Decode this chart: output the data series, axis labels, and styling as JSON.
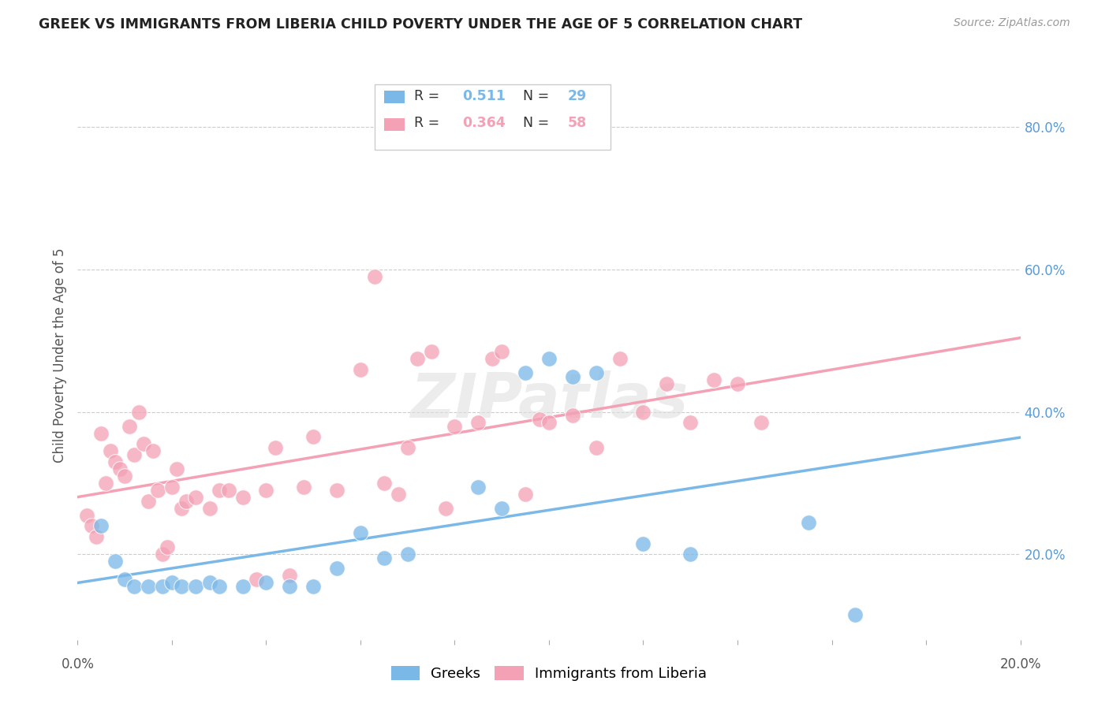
{
  "title": "GREEK VS IMMIGRANTS FROM LIBERIA CHILD POVERTY UNDER THE AGE OF 5 CORRELATION CHART",
  "source": "Source: ZipAtlas.com",
  "ylabel": "Child Poverty Under the Age of 5",
  "xlim": [
    0.0,
    0.2
  ],
  "ylim": [
    0.08,
    0.88
  ],
  "xticks_minor": [
    0.0,
    0.02,
    0.04,
    0.06,
    0.08,
    0.1,
    0.12,
    0.14,
    0.16,
    0.18,
    0.2
  ],
  "xticks_label": [
    0.0,
    0.2
  ],
  "yticks": [
    0.2,
    0.4,
    0.6,
    0.8
  ],
  "blue_color": "#7ab8e8",
  "pink_color": "#f4a0b5",
  "watermark": "ZIPatlas",
  "greek_points": [
    [
      0.005,
      0.24
    ],
    [
      0.008,
      0.19
    ],
    [
      0.01,
      0.165
    ],
    [
      0.012,
      0.155
    ],
    [
      0.015,
      0.155
    ],
    [
      0.018,
      0.155
    ],
    [
      0.02,
      0.16
    ],
    [
      0.022,
      0.155
    ],
    [
      0.025,
      0.155
    ],
    [
      0.028,
      0.16
    ],
    [
      0.03,
      0.155
    ],
    [
      0.035,
      0.155
    ],
    [
      0.04,
      0.16
    ],
    [
      0.045,
      0.155
    ],
    [
      0.05,
      0.155
    ],
    [
      0.055,
      0.18
    ],
    [
      0.06,
      0.23
    ],
    [
      0.065,
      0.195
    ],
    [
      0.07,
      0.2
    ],
    [
      0.085,
      0.295
    ],
    [
      0.09,
      0.265
    ],
    [
      0.095,
      0.455
    ],
    [
      0.1,
      0.475
    ],
    [
      0.105,
      0.45
    ],
    [
      0.11,
      0.455
    ],
    [
      0.12,
      0.215
    ],
    [
      0.13,
      0.2
    ],
    [
      0.155,
      0.245
    ],
    [
      0.165,
      0.115
    ]
  ],
  "liberia_points": [
    [
      0.002,
      0.255
    ],
    [
      0.003,
      0.24
    ],
    [
      0.004,
      0.225
    ],
    [
      0.005,
      0.37
    ],
    [
      0.006,
      0.3
    ],
    [
      0.007,
      0.345
    ],
    [
      0.008,
      0.33
    ],
    [
      0.009,
      0.32
    ],
    [
      0.01,
      0.31
    ],
    [
      0.011,
      0.38
    ],
    [
      0.012,
      0.34
    ],
    [
      0.013,
      0.4
    ],
    [
      0.014,
      0.355
    ],
    [
      0.015,
      0.275
    ],
    [
      0.016,
      0.345
    ],
    [
      0.017,
      0.29
    ],
    [
      0.018,
      0.2
    ],
    [
      0.019,
      0.21
    ],
    [
      0.02,
      0.295
    ],
    [
      0.021,
      0.32
    ],
    [
      0.022,
      0.265
    ],
    [
      0.023,
      0.275
    ],
    [
      0.025,
      0.28
    ],
    [
      0.028,
      0.265
    ],
    [
      0.03,
      0.29
    ],
    [
      0.032,
      0.29
    ],
    [
      0.035,
      0.28
    ],
    [
      0.038,
      0.165
    ],
    [
      0.04,
      0.29
    ],
    [
      0.042,
      0.35
    ],
    [
      0.045,
      0.17
    ],
    [
      0.048,
      0.295
    ],
    [
      0.05,
      0.365
    ],
    [
      0.055,
      0.29
    ],
    [
      0.06,
      0.46
    ],
    [
      0.063,
      0.59
    ],
    [
      0.065,
      0.3
    ],
    [
      0.068,
      0.285
    ],
    [
      0.07,
      0.35
    ],
    [
      0.072,
      0.475
    ],
    [
      0.075,
      0.485
    ],
    [
      0.078,
      0.265
    ],
    [
      0.08,
      0.38
    ],
    [
      0.085,
      0.385
    ],
    [
      0.088,
      0.475
    ],
    [
      0.09,
      0.485
    ],
    [
      0.095,
      0.285
    ],
    [
      0.098,
      0.39
    ],
    [
      0.1,
      0.385
    ],
    [
      0.105,
      0.395
    ],
    [
      0.11,
      0.35
    ],
    [
      0.115,
      0.475
    ],
    [
      0.12,
      0.4
    ],
    [
      0.125,
      0.44
    ],
    [
      0.13,
      0.385
    ],
    [
      0.135,
      0.445
    ],
    [
      0.14,
      0.44
    ],
    [
      0.145,
      0.385
    ]
  ]
}
